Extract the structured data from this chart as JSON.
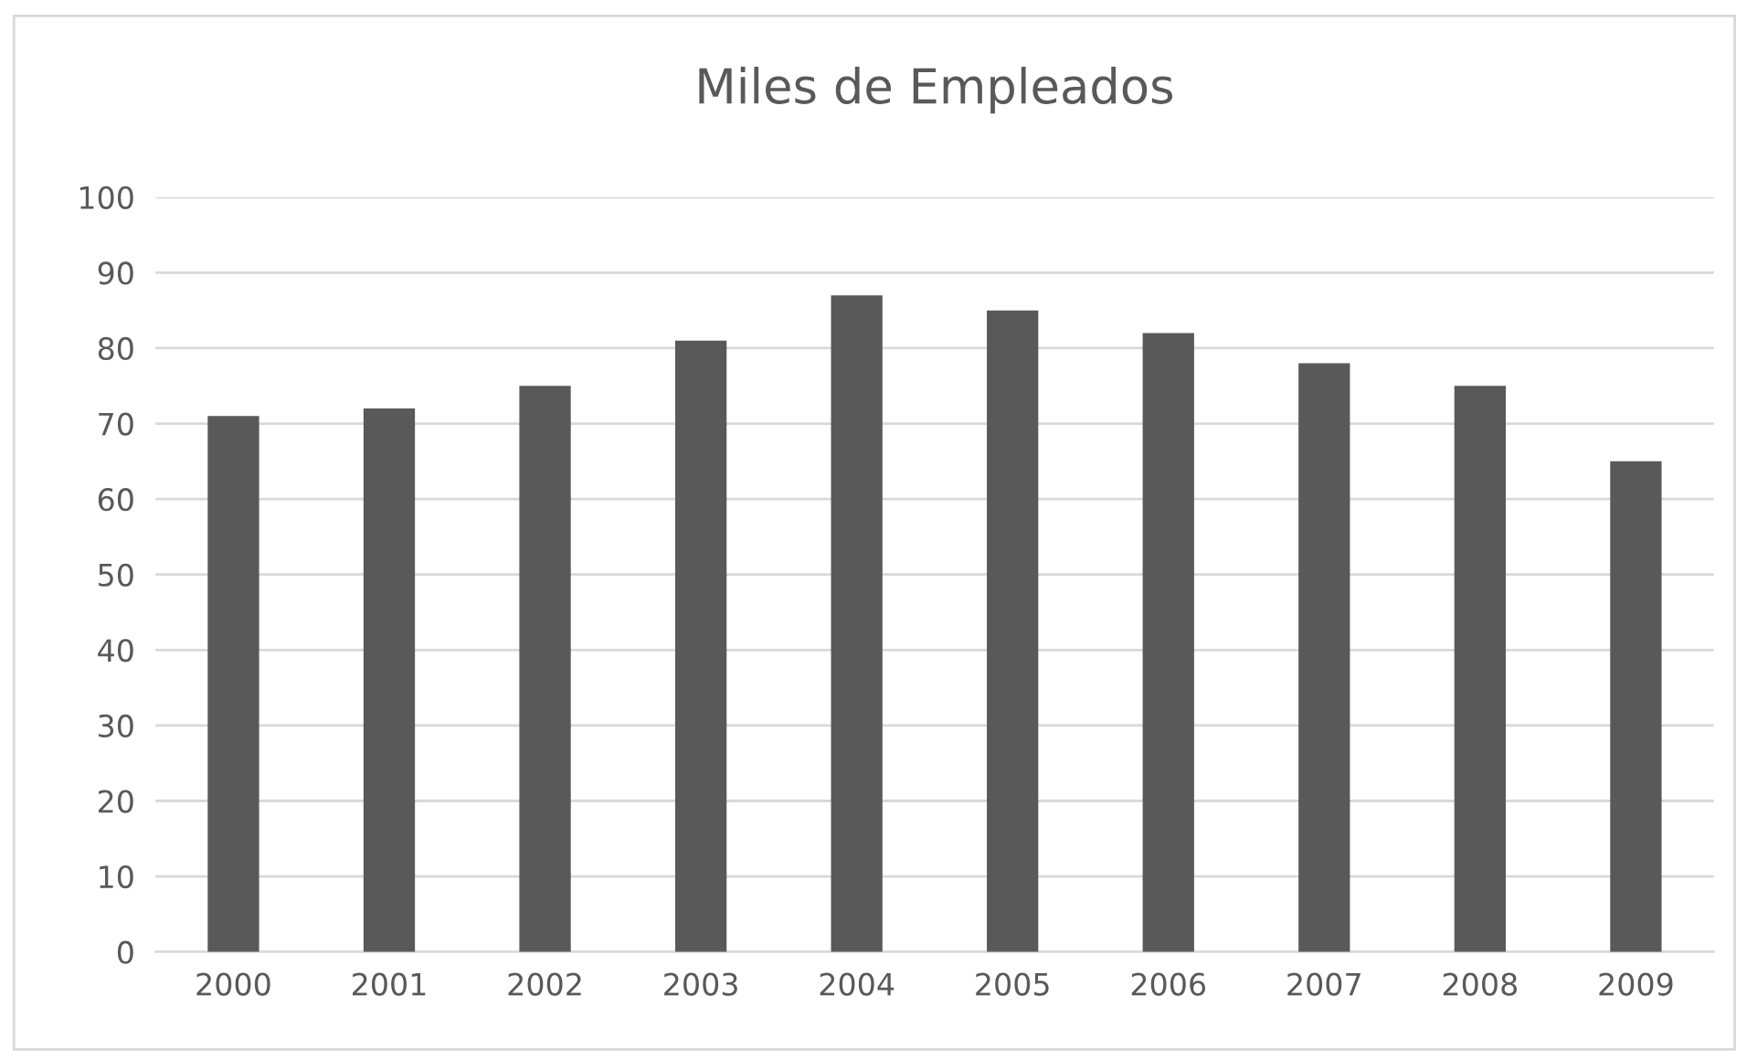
{
  "chart_data": {
    "type": "bar",
    "title": "Miles de Empleados",
    "categories": [
      "2000",
      "2001",
      "2002",
      "2003",
      "2004",
      "2005",
      "2006",
      "2007",
      "2008",
      "2009"
    ],
    "values": [
      71,
      72,
      75,
      81,
      87,
      85,
      82,
      78,
      75,
      65
    ],
    "color": "#595959",
    "ylim": [
      0,
      100
    ],
    "yticks": [
      0,
      10,
      20,
      30,
      40,
      50,
      60,
      70,
      80,
      90,
      100
    ],
    "grid": "y"
  }
}
